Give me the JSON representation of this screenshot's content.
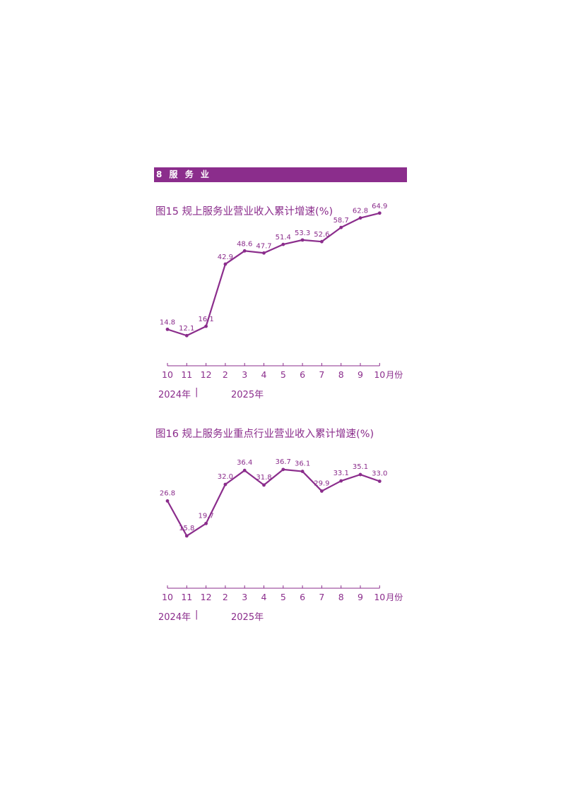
{
  "section": {
    "label": "8  服 务 业"
  },
  "colors": {
    "accent": "#8b2d8c"
  },
  "chart_data": [
    {
      "type": "line",
      "title": "图15  规上服务业营业收入累计增速(%)",
      "categories": [
        "10",
        "11",
        "12",
        "2",
        "3",
        "4",
        "5",
        "6",
        "7",
        "8",
        "9",
        "10"
      ],
      "x_unit_label": "月份",
      "series": [
        {
          "values": [
            14.8,
            12.1,
            16.1,
            42.9,
            48.6,
            47.7,
            51.4,
            53.3,
            52.6,
            58.7,
            62.8,
            64.9
          ]
        }
      ],
      "year_labels": [
        "2024年",
        "|",
        "2025年"
      ],
      "ylim": [
        0,
        70
      ],
      "grid": false,
      "data_labels": true
    },
    {
      "type": "line",
      "title": "图16  规上服务业重点行业营业收入累计增速(%)",
      "categories": [
        "10",
        "11",
        "12",
        "2",
        "3",
        "4",
        "5",
        "6",
        "7",
        "8",
        "9",
        "10"
      ],
      "x_unit_label": "月份",
      "series": [
        {
          "values": [
            26.8,
            15.8,
            19.7,
            32.0,
            36.4,
            31.8,
            36.7,
            36.1,
            29.9,
            33.1,
            35.1,
            33.0
          ]
        }
      ],
      "year_labels": [
        "2024年",
        "|",
        "2025年"
      ],
      "ylim": [
        0,
        40
      ],
      "grid": false,
      "data_labels": true
    }
  ]
}
